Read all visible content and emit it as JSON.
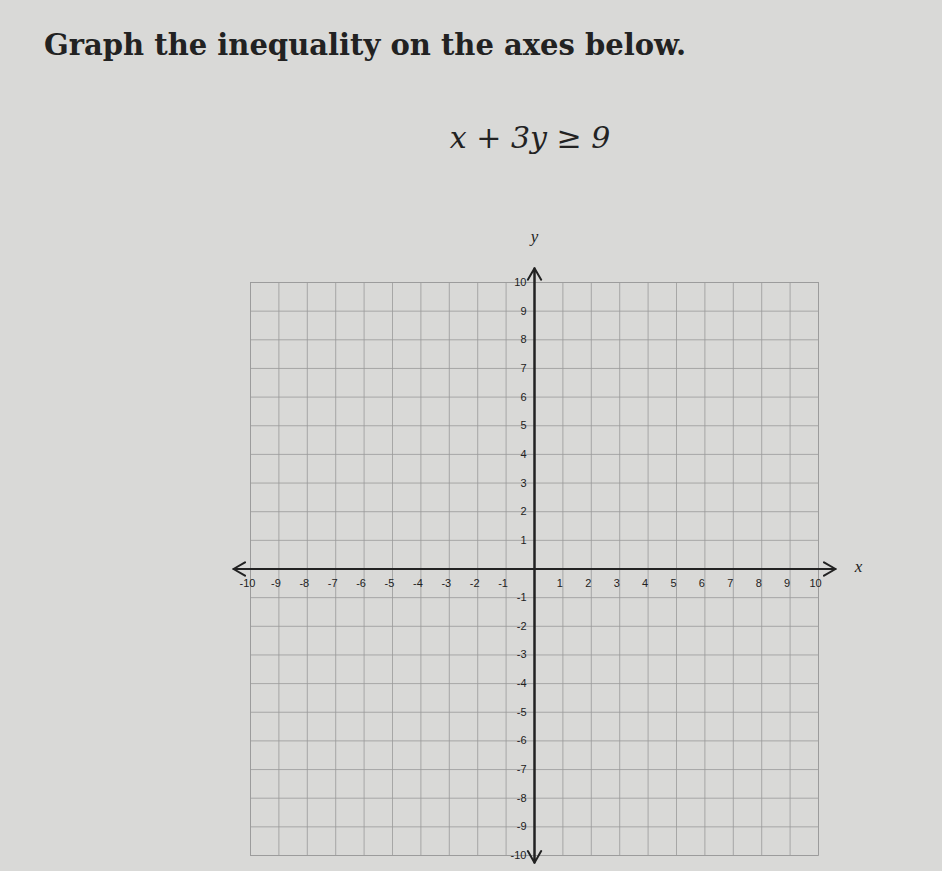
{
  "chart_data": {
    "type": "coordinate_plane",
    "title": "Graph the inequality on the axes below.",
    "subtitle": "x + 3y ≥ 9",
    "x_label": "x",
    "y_label": "y",
    "xlim": [
      -10,
      10
    ],
    "ylim": [
      -10,
      10
    ],
    "xticks": [
      -10,
      -9,
      -8,
      -7,
      -6,
      -5,
      -4,
      -3,
      -2,
      -1,
      1,
      2,
      3,
      4,
      5,
      6,
      7,
      8,
      9,
      10
    ],
    "yticks": [
      -10,
      -9,
      -8,
      -7,
      -6,
      -5,
      -4,
      -3,
      -2,
      -1,
      1,
      2,
      3,
      4,
      5,
      6,
      7,
      8,
      9,
      10
    ],
    "grid": true
  }
}
